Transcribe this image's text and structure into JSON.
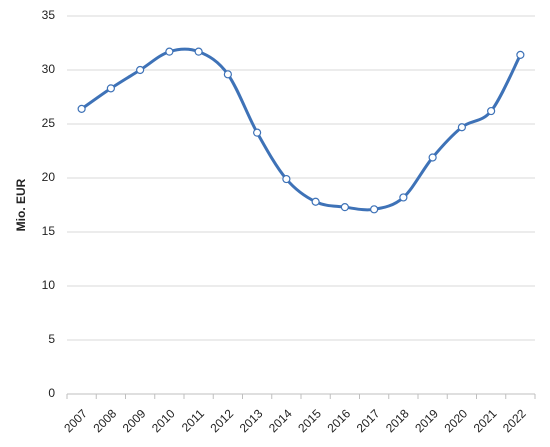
{
  "chart_data": {
    "type": "line",
    "y_label": "Mio. EUR",
    "categories": [
      "2007",
      "2008",
      "2009",
      "2010",
      "2011",
      "2012",
      "2013",
      "2014",
      "2015",
      "2016",
      "2017",
      "2018",
      "2019",
      "2020",
      "2021",
      "2022"
    ],
    "series": [
      {
        "name": "Mio. EUR",
        "color": "#3e72b7",
        "values": [
          26.4,
          28.3,
          30.0,
          31.7,
          31.7,
          29.6,
          24.2,
          19.9,
          17.8,
          17.3,
          17.1,
          18.2,
          21.9,
          24.7,
          26.2,
          31.4
        ]
      }
    ],
    "ylim": [
      0,
      35
    ],
    "yticks": [
      0,
      5,
      10,
      15,
      20,
      25,
      30,
      35
    ],
    "grid": true,
    "smooth": true
  }
}
